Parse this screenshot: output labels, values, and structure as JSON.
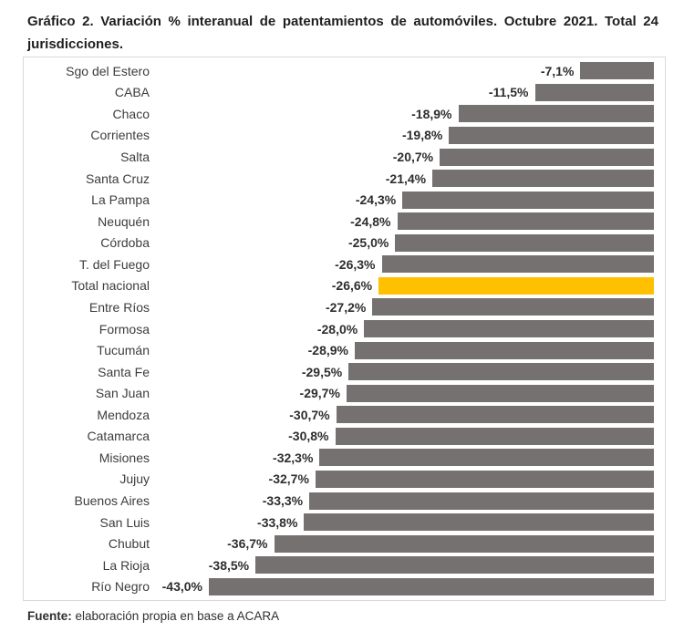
{
  "title": "Gráfico 2. Variación % interanual de patentamientos de automóviles. Octubre 2021. Total 24 jurisdicciones.",
  "source": {
    "label": "Fuente:",
    "text": " elaboración propia en base a ACARA"
  },
  "chart_data": {
    "type": "bar",
    "orientation": "horizontal",
    "title": "Variación % interanual de patentamientos de automóviles. Octubre 2021. Total 24 jurisdicciones.",
    "unit": "%",
    "xlim": [
      -45,
      0
    ],
    "grid": false,
    "legend_position": "none",
    "value_axis_anchor": "right",
    "categories": [
      "Sgo del Estero",
      "CABA",
      "Chaco",
      "Corrientes",
      "Salta",
      "Santa Cruz",
      "La Pampa",
      "Neuquén",
      "Córdoba",
      "T. del Fuego",
      "Total nacional",
      "Entre Ríos",
      "Formosa",
      "Tucumán",
      "Santa Fe",
      "San Juan",
      "Mendoza",
      "Catamarca",
      "Misiones",
      "Jujuy",
      "Buenos Aires",
      "San Luis",
      "Chubut",
      "La Rioja",
      "Río Negro"
    ],
    "values": [
      -7.1,
      -11.5,
      -18.9,
      -19.8,
      -20.7,
      -21.4,
      -24.3,
      -24.8,
      -25.0,
      -26.3,
      -26.6,
      -27.2,
      -28.0,
      -28.9,
      -29.5,
      -29.7,
      -30.7,
      -30.8,
      -32.3,
      -32.7,
      -33.3,
      -33.8,
      -36.7,
      -38.5,
      -43.0
    ],
    "value_labels": [
      "-7,1%",
      "-11,5%",
      "-18,9%",
      "-19,8%",
      "-20,7%",
      "-21,4%",
      "-24,3%",
      "-24,8%",
      "-25,0%",
      "-26,3%",
      "-26,6%",
      "-27,2%",
      "-28,0%",
      "-28,9%",
      "-29,5%",
      "-29,7%",
      "-30,7%",
      "-30,8%",
      "-32,3%",
      "-32,7%",
      "-33,3%",
      "-33,8%",
      "-36,7%",
      "-38,5%",
      "-43,0%"
    ],
    "highlight_category": "Total nacional",
    "colors": {
      "bar": "#767171",
      "highlight": "#FFC000"
    }
  }
}
